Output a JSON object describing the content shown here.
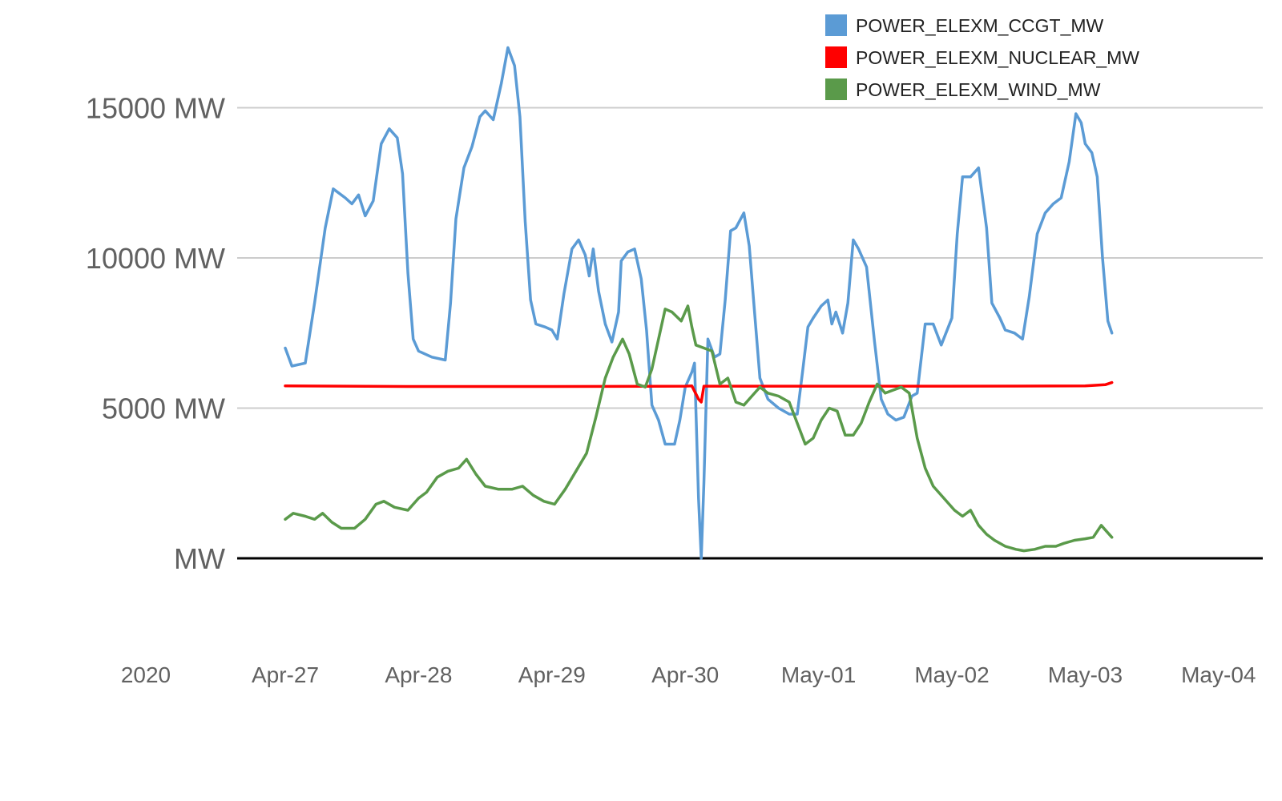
{
  "chart_data": {
    "type": "line",
    "title": "",
    "xlabel": "",
    "ylabel": "",
    "year_label": "2020",
    "x_ticks": [
      "Apr-27",
      "Apr-28",
      "Apr-29",
      "Apr-30",
      "May-01",
      "May-02",
      "May-03",
      "May-04"
    ],
    "x_range": [
      "2020-04-27T00:00",
      "2020-05-04T00:00"
    ],
    "y_ticks": [
      {
        "value": 0,
        "label": "MW"
      },
      {
        "value": 5000,
        "label": "5000 MW"
      },
      {
        "value": 10000,
        "label": "10000 MW"
      },
      {
        "value": 15000,
        "label": "15000 MW"
      }
    ],
    "ylim": [
      -2500,
      17500
    ],
    "grid": true,
    "legend_position": "top-right",
    "series": [
      {
        "name": "POWER_ELEXM_CCGT_MW",
        "color": "#5b9bd5",
        "points": [
          [
            0.0,
            7000
          ],
          [
            0.05,
            6400
          ],
          [
            0.15,
            6500
          ],
          [
            0.22,
            8500
          ],
          [
            0.3,
            11000
          ],
          [
            0.36,
            12300
          ],
          [
            0.45,
            12000
          ],
          [
            0.5,
            11800
          ],
          [
            0.55,
            12100
          ],
          [
            0.6,
            11400
          ],
          [
            0.66,
            11900
          ],
          [
            0.72,
            13800
          ],
          [
            0.78,
            14300
          ],
          [
            0.84,
            14000
          ],
          [
            0.88,
            12800
          ],
          [
            0.92,
            9500
          ],
          [
            0.96,
            7300
          ],
          [
            1.0,
            6900
          ],
          [
            1.1,
            6700
          ],
          [
            1.2,
            6600
          ],
          [
            1.24,
            8500
          ],
          [
            1.28,
            11300
          ],
          [
            1.34,
            13000
          ],
          [
            1.4,
            13700
          ],
          [
            1.46,
            14700
          ],
          [
            1.5,
            14900
          ],
          [
            1.56,
            14600
          ],
          [
            1.62,
            15800
          ],
          [
            1.67,
            17000
          ],
          [
            1.72,
            16400
          ],
          [
            1.76,
            14700
          ],
          [
            1.8,
            11200
          ],
          [
            1.84,
            8600
          ],
          [
            1.88,
            7800
          ],
          [
            1.95,
            7700
          ],
          [
            2.0,
            7600
          ],
          [
            2.04,
            7300
          ],
          [
            2.09,
            8800
          ],
          [
            2.15,
            10300
          ],
          [
            2.2,
            10600
          ],
          [
            2.25,
            10100
          ],
          [
            2.28,
            9400
          ],
          [
            2.31,
            10300
          ],
          [
            2.35,
            8900
          ],
          [
            2.4,
            7800
          ],
          [
            2.45,
            7200
          ],
          [
            2.5,
            8200
          ],
          [
            2.52,
            9900
          ],
          [
            2.57,
            10200
          ],
          [
            2.62,
            10300
          ],
          [
            2.67,
            9300
          ],
          [
            2.71,
            7600
          ],
          [
            2.75,
            5100
          ],
          [
            2.8,
            4600
          ],
          [
            2.85,
            3800
          ],
          [
            2.92,
            3800
          ],
          [
            2.96,
            4600
          ],
          [
            3.0,
            5700
          ],
          [
            3.05,
            6200
          ],
          [
            3.07,
            6500
          ],
          [
            3.1,
            2000
          ],
          [
            3.12,
            0
          ],
          [
            3.14,
            2500
          ],
          [
            3.17,
            7300
          ],
          [
            3.22,
            6700
          ],
          [
            3.26,
            6800
          ],
          [
            3.3,
            8600
          ],
          [
            3.34,
            10900
          ],
          [
            3.38,
            11000
          ],
          [
            3.44,
            11500
          ],
          [
            3.48,
            10400
          ],
          [
            3.52,
            8200
          ],
          [
            3.56,
            6000
          ],
          [
            3.62,
            5300
          ],
          [
            3.7,
            5000
          ],
          [
            3.78,
            4800
          ],
          [
            3.84,
            4800
          ],
          [
            3.88,
            6200
          ],
          [
            3.92,
            7700
          ],
          [
            3.96,
            8000
          ],
          [
            4.02,
            8400
          ],
          [
            4.07,
            8600
          ],
          [
            4.1,
            7800
          ],
          [
            4.13,
            8200
          ],
          [
            4.18,
            7500
          ],
          [
            4.22,
            8500
          ],
          [
            4.26,
            10600
          ],
          [
            4.3,
            10300
          ],
          [
            4.36,
            9700
          ],
          [
            4.42,
            7200
          ],
          [
            4.47,
            5300
          ],
          [
            4.52,
            4800
          ],
          [
            4.58,
            4600
          ],
          [
            4.64,
            4700
          ],
          [
            4.7,
            5400
          ],
          [
            4.74,
            5500
          ],
          [
            4.8,
            7800
          ],
          [
            4.86,
            7800
          ],
          [
            4.92,
            7100
          ],
          [
            5.0,
            8000
          ],
          [
            5.04,
            10800
          ],
          [
            5.08,
            12700
          ],
          [
            5.14,
            12700
          ],
          [
            5.2,
            13000
          ],
          [
            5.26,
            11000
          ],
          [
            5.3,
            8500
          ],
          [
            5.36,
            8000
          ],
          [
            5.4,
            7600
          ],
          [
            5.47,
            7500
          ],
          [
            5.53,
            7300
          ],
          [
            5.58,
            8700
          ],
          [
            5.64,
            10800
          ],
          [
            5.7,
            11500
          ],
          [
            5.76,
            11800
          ],
          [
            5.82,
            12000
          ],
          [
            5.88,
            13200
          ],
          [
            5.93,
            14800
          ],
          [
            5.97,
            14500
          ],
          [
            6.0,
            13800
          ],
          [
            6.05,
            13500
          ],
          [
            6.09,
            12700
          ],
          [
            6.13,
            10000
          ],
          [
            6.17,
            7900
          ],
          [
            6.2,
            7500
          ]
        ]
      },
      {
        "name": "POWER_ELEXM_NUCLEAR_MW",
        "color": "#ff0000",
        "points": [
          [
            0.0,
            5740
          ],
          [
            1.0,
            5720
          ],
          [
            2.0,
            5720
          ],
          [
            3.0,
            5730
          ],
          [
            3.05,
            5740
          ],
          [
            3.1,
            5300
          ],
          [
            3.12,
            5200
          ],
          [
            3.14,
            5730
          ],
          [
            4.0,
            5730
          ],
          [
            5.0,
            5730
          ],
          [
            6.0,
            5740
          ],
          [
            6.15,
            5780
          ],
          [
            6.2,
            5850
          ]
        ]
      },
      {
        "name": "POWER_ELEXM_WIND_MW",
        "color": "#5a9a4a",
        "points": [
          [
            0.0,
            1300
          ],
          [
            0.06,
            1500
          ],
          [
            0.15,
            1400
          ],
          [
            0.22,
            1300
          ],
          [
            0.28,
            1500
          ],
          [
            0.35,
            1200
          ],
          [
            0.42,
            1000
          ],
          [
            0.52,
            1000
          ],
          [
            0.6,
            1300
          ],
          [
            0.68,
            1800
          ],
          [
            0.74,
            1900
          ],
          [
            0.82,
            1700
          ],
          [
            0.92,
            1600
          ],
          [
            1.0,
            2000
          ],
          [
            1.06,
            2200
          ],
          [
            1.14,
            2700
          ],
          [
            1.22,
            2900
          ],
          [
            1.3,
            3000
          ],
          [
            1.36,
            3300
          ],
          [
            1.43,
            2800
          ],
          [
            1.5,
            2400
          ],
          [
            1.6,
            2300
          ],
          [
            1.7,
            2300
          ],
          [
            1.78,
            2400
          ],
          [
            1.86,
            2100
          ],
          [
            1.94,
            1900
          ],
          [
            2.02,
            1800
          ],
          [
            2.1,
            2300
          ],
          [
            2.18,
            2900
          ],
          [
            2.26,
            3500
          ],
          [
            2.33,
            4700
          ],
          [
            2.4,
            6000
          ],
          [
            2.46,
            6700
          ],
          [
            2.53,
            7300
          ],
          [
            2.58,
            6800
          ],
          [
            2.64,
            5800
          ],
          [
            2.7,
            5700
          ],
          [
            2.75,
            6300
          ],
          [
            2.8,
            7300
          ],
          [
            2.85,
            8300
          ],
          [
            2.9,
            8200
          ],
          [
            2.97,
            7900
          ],
          [
            3.02,
            8400
          ],
          [
            3.05,
            7700
          ],
          [
            3.08,
            7100
          ],
          [
            3.14,
            7000
          ],
          [
            3.2,
            6900
          ],
          [
            3.26,
            5800
          ],
          [
            3.32,
            6000
          ],
          [
            3.38,
            5200
          ],
          [
            3.44,
            5100
          ],
          [
            3.5,
            5400
          ],
          [
            3.56,
            5700
          ],
          [
            3.62,
            5500
          ],
          [
            3.7,
            5400
          ],
          [
            3.78,
            5200
          ],
          [
            3.84,
            4500
          ],
          [
            3.9,
            3800
          ],
          [
            3.96,
            4000
          ],
          [
            4.02,
            4600
          ],
          [
            4.08,
            5000
          ],
          [
            4.14,
            4900
          ],
          [
            4.2,
            4100
          ],
          [
            4.26,
            4100
          ],
          [
            4.32,
            4500
          ],
          [
            4.38,
            5200
          ],
          [
            4.44,
            5800
          ],
          [
            4.5,
            5500
          ],
          [
            4.56,
            5600
          ],
          [
            4.62,
            5700
          ],
          [
            4.68,
            5500
          ],
          [
            4.74,
            4000
          ],
          [
            4.8,
            3000
          ],
          [
            4.86,
            2400
          ],
          [
            4.94,
            2000
          ],
          [
            5.02,
            1600
          ],
          [
            5.08,
            1400
          ],
          [
            5.14,
            1600
          ],
          [
            5.2,
            1100
          ],
          [
            5.26,
            800
          ],
          [
            5.32,
            600
          ],
          [
            5.4,
            400
          ],
          [
            5.48,
            300
          ],
          [
            5.54,
            250
          ],
          [
            5.62,
            300
          ],
          [
            5.7,
            400
          ],
          [
            5.78,
            400
          ],
          [
            5.84,
            500
          ],
          [
            5.92,
            600
          ],
          [
            6.0,
            650
          ],
          [
            6.06,
            700
          ],
          [
            6.12,
            1100
          ],
          [
            6.16,
            900
          ],
          [
            6.2,
            700
          ]
        ]
      }
    ]
  }
}
